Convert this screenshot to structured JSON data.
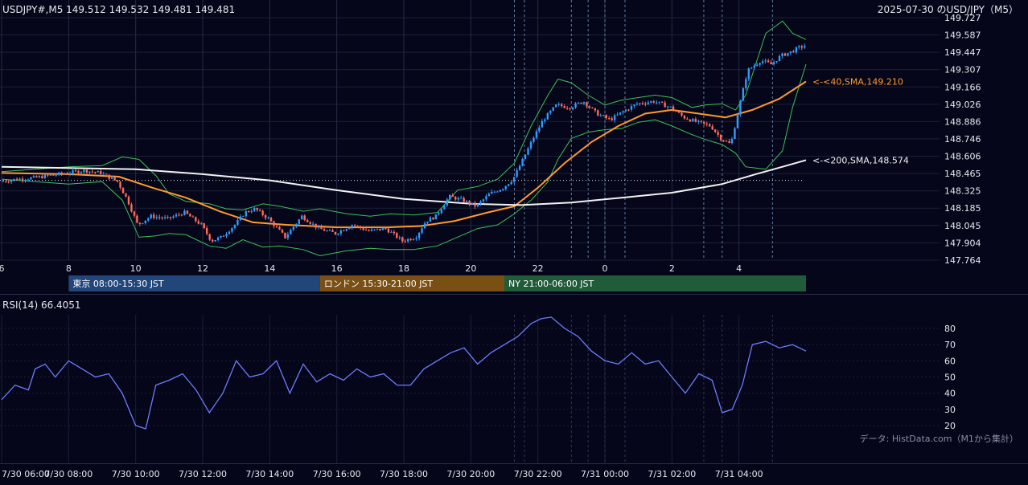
{
  "header": {
    "symbol_info": "USDJPY#,M5 149.512 149.532 149.481 149.481",
    "title": "2025-07-30 のUSD/JPY（M5）"
  },
  "sessions": [
    {
      "label": "東京 08:00-15:30 JST",
      "color": "#22467a",
      "x_start": 8.0,
      "x_end": 15.5
    },
    {
      "label": "ロンドン 15:30-21:00 JST",
      "color": "#7a4f14",
      "x_start": 15.5,
      "x_end": 21.0
    },
    {
      "label": "NY 21:00-06:00 JST",
      "color": "#215c3a",
      "x_start": 21.0,
      "x_end": 30.0
    }
  ],
  "rsi_label": "RSI(14) 66.4051",
  "credit": "データ: HistData.com（M1から集計）",
  "colors": {
    "background": "#050619",
    "up_candle": "#2f9bff",
    "down_candle": "#ff6a5a",
    "sma40": "#ff9a2e",
    "sma200": "#f2f2f2",
    "bollinger": "#3fbf5a",
    "rsi": "#6d7bff",
    "grid": "#1c2038"
  },
  "chart_data": [
    {
      "type": "candlestick",
      "title": "USDJPY#,M5",
      "xlim": [
        6.0,
        30.0
      ],
      "ylim": [
        147.764,
        149.727
      ],
      "y_ticks": [
        "149.727",
        "149.587",
        "149.447",
        "149.307",
        "149.166",
        "149.026",
        "148.886",
        "148.746",
        "148.606",
        "148.465",
        "148.325",
        "148.185",
        "148.045",
        "147.904",
        "147.764"
      ],
      "x_ticks": [
        "6",
        "8",
        "10",
        "12",
        "14",
        "16",
        "18",
        "20",
        "22",
        "0",
        "2",
        "4"
      ],
      "x_tick_hours": [
        6,
        8,
        10,
        12,
        14,
        16,
        18,
        20,
        22,
        24,
        26,
        28
      ],
      "reference_level": 148.41,
      "event_lines_hour": [
        21.3,
        21.6,
        23.0,
        23.5,
        24.0,
        24.6,
        26.95,
        27.5,
        29.0
      ],
      "price_path": [
        [
          6.0,
          148.4
        ],
        [
          6.5,
          148.42
        ],
        [
          7.0,
          148.43
        ],
        [
          7.5,
          148.45
        ],
        [
          8.0,
          148.47
        ],
        [
          8.5,
          148.49
        ],
        [
          9.0,
          148.47
        ],
        [
          9.5,
          148.4
        ],
        [
          9.8,
          148.25
        ],
        [
          10.1,
          148.05
        ],
        [
          10.5,
          148.12
        ],
        [
          11.0,
          148.1
        ],
        [
          11.5,
          148.15
        ],
        [
          12.0,
          148.05
        ],
        [
          12.3,
          147.92
        ],
        [
          12.6,
          147.95
        ],
        [
          13.0,
          148.05
        ],
        [
          13.3,
          148.15
        ],
        [
          13.6,
          148.18
        ],
        [
          14.0,
          148.1
        ],
        [
          14.5,
          147.95
        ],
        [
          15.0,
          148.12
        ],
        [
          15.5,
          148.02
        ],
        [
          16.0,
          147.98
        ],
        [
          16.5,
          148.05
        ],
        [
          17.0,
          148.0
        ],
        [
          17.5,
          148.02
        ],
        [
          18.0,
          147.92
        ],
        [
          18.4,
          147.95
        ],
        [
          18.7,
          148.08
        ],
        [
          19.0,
          148.12
        ],
        [
          19.4,
          148.28
        ],
        [
          19.8,
          148.25
        ],
        [
          20.2,
          148.2
        ],
        [
          20.6,
          148.3
        ],
        [
          21.0,
          148.35
        ],
        [
          21.3,
          148.42
        ],
        [
          21.6,
          148.58
        ],
        [
          21.9,
          148.75
        ],
        [
          22.2,
          148.9
        ],
        [
          22.6,
          149.02
        ],
        [
          23.0,
          149.0
        ],
        [
          23.4,
          149.05
        ],
        [
          23.8,
          148.95
        ],
        [
          24.2,
          148.9
        ],
        [
          24.6,
          148.97
        ],
        [
          25.0,
          149.03
        ],
        [
          25.5,
          149.05
        ],
        [
          26.0,
          149.0
        ],
        [
          26.4,
          148.92
        ],
        [
          26.8,
          148.88
        ],
        [
          27.2,
          148.85
        ],
        [
          27.5,
          148.75
        ],
        [
          27.8,
          148.7
        ],
        [
          28.0,
          148.95
        ],
        [
          28.3,
          149.3
        ],
        [
          28.7,
          149.38
        ],
        [
          29.0,
          149.35
        ],
        [
          29.3,
          149.42
        ],
        [
          29.6,
          149.45
        ],
        [
          29.8,
          149.48
        ],
        [
          30.0,
          149.5
        ]
      ],
      "series": [
        {
          "name": "SMA 40",
          "label": "<-<40,SMA,149.210",
          "last_value": 149.21,
          "points": [
            [
              6.0,
              148.47
            ],
            [
              8.0,
              148.46
            ],
            [
              9.5,
              148.44
            ],
            [
              10.5,
              148.35
            ],
            [
              11.5,
              148.27
            ],
            [
              12.5,
              148.16
            ],
            [
              13.5,
              148.07
            ],
            [
              14.5,
              148.05
            ],
            [
              16.0,
              148.03
            ],
            [
              17.5,
              148.03
            ],
            [
              18.5,
              148.04
            ],
            [
              19.5,
              148.08
            ],
            [
              20.5,
              148.15
            ],
            [
              21.3,
              148.2
            ],
            [
              22.0,
              148.35
            ],
            [
              22.8,
              148.55
            ],
            [
              23.6,
              148.72
            ],
            [
              24.4,
              148.85
            ],
            [
              25.2,
              148.95
            ],
            [
              26.0,
              148.98
            ],
            [
              26.8,
              148.95
            ],
            [
              27.6,
              148.92
            ],
            [
              28.4,
              148.98
            ],
            [
              29.2,
              149.07
            ],
            [
              30.0,
              149.21
            ]
          ]
        },
        {
          "name": "SMA 200",
          "label": "<-<200,SMA,148.574",
          "last_value": 148.574,
          "points": [
            [
              6.0,
              148.52
            ],
            [
              8.0,
              148.51
            ],
            [
              10.0,
              148.5
            ],
            [
              12.0,
              148.46
            ],
            [
              14.0,
              148.41
            ],
            [
              16.0,
              148.33
            ],
            [
              18.0,
              148.26
            ],
            [
              20.0,
              148.22
            ],
            [
              21.5,
              148.21
            ],
            [
              23.0,
              148.23
            ],
            [
              24.5,
              148.27
            ],
            [
              26.0,
              148.31
            ],
            [
              27.5,
              148.38
            ],
            [
              28.5,
              148.46
            ],
            [
              29.3,
              148.52
            ],
            [
              30.0,
              148.574
            ]
          ]
        },
        {
          "name": "BB upper",
          "points": [
            [
              6.0,
              148.48
            ],
            [
              8.0,
              148.52
            ],
            [
              9.0,
              148.53
            ],
            [
              9.6,
              148.6
            ],
            [
              10.1,
              148.58
            ],
            [
              10.6,
              148.45
            ],
            [
              11.0,
              148.3
            ],
            [
              11.5,
              148.24
            ],
            [
              12.2,
              148.22
            ],
            [
              12.7,
              148.18
            ],
            [
              13.2,
              148.17
            ],
            [
              13.8,
              148.22
            ],
            [
              14.3,
              148.2
            ],
            [
              15.0,
              148.16
            ],
            [
              15.5,
              148.18
            ],
            [
              16.3,
              148.14
            ],
            [
              17.0,
              148.12
            ],
            [
              17.6,
              148.14
            ],
            [
              18.3,
              148.13
            ],
            [
              19.0,
              148.15
            ],
            [
              19.6,
              148.33
            ],
            [
              20.2,
              148.36
            ],
            [
              20.8,
              148.42
            ],
            [
              21.3,
              148.55
            ],
            [
              21.8,
              148.85
            ],
            [
              22.3,
              149.1
            ],
            [
              22.6,
              149.23
            ],
            [
              23.0,
              149.2
            ],
            [
              23.5,
              149.1
            ],
            [
              24.0,
              149.02
            ],
            [
              24.5,
              149.06
            ],
            [
              25.0,
              149.08
            ],
            [
              25.5,
              149.1
            ],
            [
              26.0,
              149.08
            ],
            [
              26.6,
              149.0
            ],
            [
              27.0,
              149.02
            ],
            [
              27.5,
              149.03
            ],
            [
              27.9,
              148.98
            ],
            [
              28.2,
              149.1
            ],
            [
              28.8,
              149.6
            ],
            [
              29.3,
              149.7
            ],
            [
              29.6,
              149.6
            ],
            [
              30.0,
              149.55
            ]
          ]
        },
        {
          "name": "BB lower",
          "points": [
            [
              6.0,
              148.42
            ],
            [
              8.0,
              148.38
            ],
            [
              9.0,
              148.4
            ],
            [
              9.6,
              148.25
            ],
            [
              10.1,
              147.95
            ],
            [
              10.6,
              147.96
            ],
            [
              11.0,
              147.98
            ],
            [
              11.5,
              147.97
            ],
            [
              12.2,
              147.88
            ],
            [
              12.7,
              147.86
            ],
            [
              13.2,
              147.93
            ],
            [
              13.8,
              147.87
            ],
            [
              14.3,
              147.88
            ],
            [
              15.0,
              147.85
            ],
            [
              15.5,
              147.8
            ],
            [
              16.3,
              147.84
            ],
            [
              17.0,
              147.86
            ],
            [
              17.6,
              147.85
            ],
            [
              18.3,
              147.85
            ],
            [
              19.0,
              147.88
            ],
            [
              19.6,
              147.95
            ],
            [
              20.2,
              148.02
            ],
            [
              20.8,
              148.05
            ],
            [
              21.3,
              148.14
            ],
            [
              21.8,
              148.25
            ],
            [
              22.3,
              148.4
            ],
            [
              22.6,
              148.58
            ],
            [
              23.0,
              148.75
            ],
            [
              23.5,
              148.8
            ],
            [
              24.0,
              148.82
            ],
            [
              24.5,
              148.83
            ],
            [
              25.0,
              148.88
            ],
            [
              25.5,
              148.9
            ],
            [
              26.0,
              148.85
            ],
            [
              26.6,
              148.78
            ],
            [
              27.0,
              148.74
            ],
            [
              27.5,
              148.7
            ],
            [
              27.9,
              148.63
            ],
            [
              28.2,
              148.52
            ],
            [
              28.8,
              148.5
            ],
            [
              29.3,
              148.65
            ],
            [
              29.6,
              149.0
            ],
            [
              30.0,
              149.35
            ]
          ]
        }
      ]
    },
    {
      "type": "line",
      "title": "RSI(14) 66.4051",
      "xlim": [
        6.0,
        30.0
      ],
      "ylim": [
        10,
        90
      ],
      "y_ticks": [
        "80",
        "70",
        "60",
        "50",
        "40",
        "30",
        "20"
      ],
      "x_ticks": [
        "7/30 06:00",
        "7/30 08:00",
        "7/30 10:00",
        "7/30 12:00",
        "7/30 14:00",
        "7/30 16:00",
        "7/30 18:00",
        "7/30 20:00",
        "7/30 22:00",
        "7/31 00:00",
        "7/31 02:00",
        "7/31 04:00"
      ],
      "x_tick_hours": [
        6,
        8,
        10,
        12,
        14,
        16,
        18,
        20,
        22,
        24,
        26,
        28
      ],
      "series": [
        {
          "name": "RSI(14)",
          "points": [
            [
              6.0,
              36
            ],
            [
              6.4,
              45
            ],
            [
              6.8,
              42
            ],
            [
              7.0,
              55
            ],
            [
              7.3,
              58
            ],
            [
              7.6,
              50
            ],
            [
              8.0,
              60
            ],
            [
              8.4,
              55
            ],
            [
              8.8,
              50
            ],
            [
              9.2,
              52
            ],
            [
              9.6,
              40
            ],
            [
              10.0,
              20
            ],
            [
              10.3,
              18
            ],
            [
              10.6,
              45
            ],
            [
              11.0,
              48
            ],
            [
              11.4,
              52
            ],
            [
              11.8,
              42
            ],
            [
              12.2,
              28
            ],
            [
              12.6,
              40
            ],
            [
              13.0,
              60
            ],
            [
              13.4,
              50
            ],
            [
              13.8,
              52
            ],
            [
              14.2,
              60
            ],
            [
              14.6,
              40
            ],
            [
              15.0,
              58
            ],
            [
              15.4,
              47
            ],
            [
              15.8,
              52
            ],
            [
              16.2,
              48
            ],
            [
              16.6,
              55
            ],
            [
              17.0,
              50
            ],
            [
              17.4,
              52
            ],
            [
              17.8,
              45
            ],
            [
              18.2,
              45
            ],
            [
              18.6,
              55
            ],
            [
              19.0,
              60
            ],
            [
              19.4,
              65
            ],
            [
              19.8,
              68
            ],
            [
              20.2,
              58
            ],
            [
              20.6,
              65
            ],
            [
              21.0,
              70
            ],
            [
              21.4,
              75
            ],
            [
              21.8,
              83
            ],
            [
              22.1,
              86
            ],
            [
              22.4,
              87
            ],
            [
              22.8,
              80
            ],
            [
              23.2,
              75
            ],
            [
              23.6,
              66
            ],
            [
              24.0,
              60
            ],
            [
              24.4,
              58
            ],
            [
              24.8,
              65
            ],
            [
              25.2,
              58
            ],
            [
              25.6,
              60
            ],
            [
              26.0,
              50
            ],
            [
              26.4,
              40
            ],
            [
              26.8,
              52
            ],
            [
              27.2,
              48
            ],
            [
              27.5,
              28
            ],
            [
              27.8,
              30
            ],
            [
              28.1,
              45
            ],
            [
              28.4,
              70
            ],
            [
              28.8,
              72
            ],
            [
              29.2,
              68
            ],
            [
              29.6,
              70
            ],
            [
              30.0,
              66
            ]
          ]
        }
      ]
    }
  ]
}
